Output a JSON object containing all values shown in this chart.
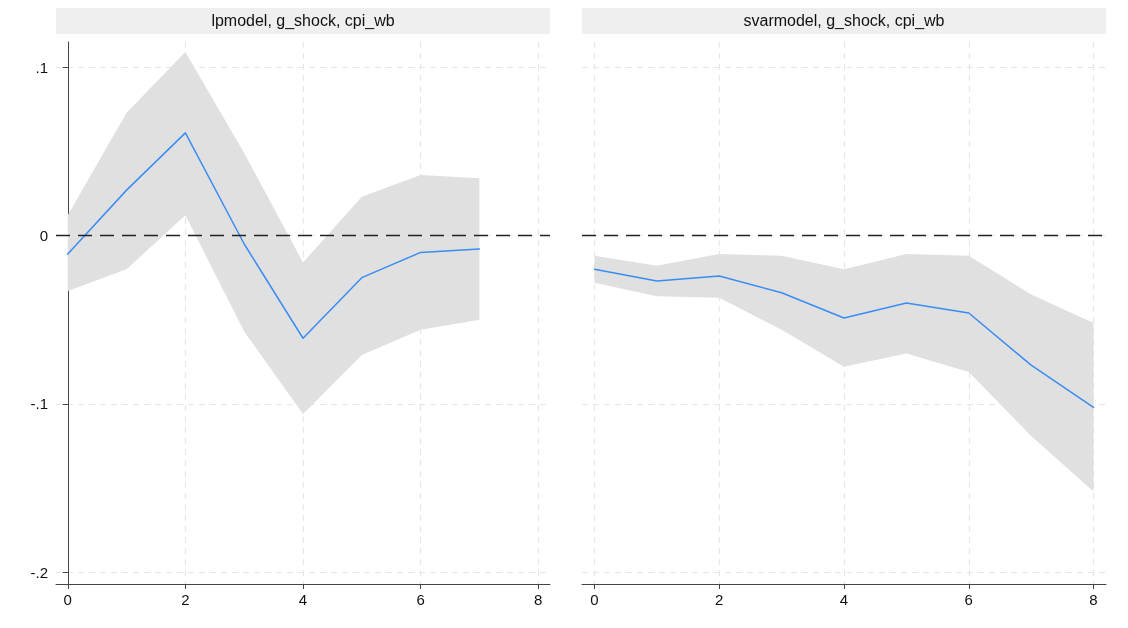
{
  "chart_data": [
    {
      "type": "line",
      "title": "lpmodel, g_shock, cpi_wb",
      "x": [
        0,
        1,
        2,
        3,
        4,
        5,
        6,
        7
      ],
      "series": [
        {
          "color": "#3a8cf5",
          "values": [
            -0.011,
            0.027,
            0.061,
            -0.005,
            -0.061,
            -0.025,
            -0.01,
            -0.008
          ],
          "lower": [
            -0.033,
            -0.02,
            0.012,
            -0.057,
            -0.106,
            -0.071,
            -0.056,
            -0.05
          ],
          "upper": [
            0.012,
            0.073,
            0.109,
            0.049,
            -0.016,
            0.023,
            0.036,
            0.034
          ]
        }
      ],
      "xlim": [
        -0.2,
        8.2
      ],
      "xticks": [
        0,
        2,
        4,
        6,
        8
      ],
      "ylim": [
        -0.207,
        0.115
      ],
      "yticks": [
        {
          "value": -0.2,
          "label": "-.2"
        },
        {
          "value": -0.1,
          "label": "-.1"
        },
        0,
        {
          "value": 0.1,
          "label": ".1"
        }
      ],
      "ref_lines": [
        {
          "axis": "y",
          "value": 0,
          "color": "#222222",
          "line_style": "dashed"
        }
      ],
      "grid": true,
      "marker": "none",
      "line_style": "solid"
    },
    {
      "type": "line",
      "title": "svarmodel, g_shock, cpi_wb",
      "x": [
        0,
        1,
        2,
        3,
        4,
        5,
        6,
        7,
        8
      ],
      "series": [
        {
          "color": "#3a8cf5",
          "values": [
            -0.02,
            -0.027,
            -0.024,
            -0.034,
            -0.049,
            -0.04,
            -0.046,
            -0.077,
            -0.102
          ],
          "lower": [
            -0.028,
            -0.036,
            -0.037,
            -0.056,
            -0.078,
            -0.07,
            -0.081,
            -0.119,
            -0.152
          ],
          "upper": [
            -0.012,
            -0.018,
            -0.011,
            -0.012,
            -0.02,
            -0.011,
            -0.012,
            -0.035,
            -0.052
          ]
        }
      ],
      "xlim": [
        -0.2,
        8.2
      ],
      "xticks": [
        0,
        2,
        4,
        6,
        8
      ],
      "ylim": [
        -0.207,
        0.115
      ],
      "yticks": [
        -0.2,
        -0.1,
        0,
        0.1
      ],
      "ref_lines": [
        {
          "axis": "y",
          "value": 0,
          "color": "#222222",
          "line_style": "dashed"
        }
      ],
      "grid": true,
      "marker": "none",
      "line_style": "solid",
      "tick_labels": "x"
    }
  ]
}
